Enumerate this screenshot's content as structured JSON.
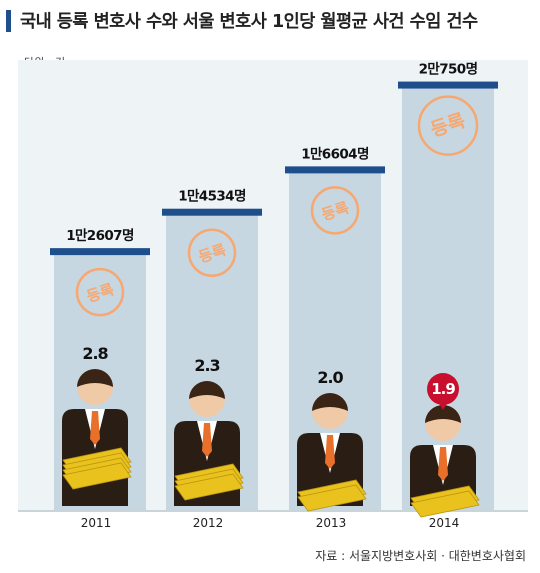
{
  "header": {
    "title": "국내 등록 변호사 수와 서울 변호사 1인당 월평균 사건 수임 건수",
    "unit": "단위 : 건"
  },
  "footer": {
    "source": "자료 : 서울지방변호사회 · 대한변호사협회"
  },
  "chart_data": {
    "type": "bar",
    "categories": [
      "2011",
      "2012",
      "2013",
      "2014"
    ],
    "series": [
      {
        "name": "등록",
        "values": [
          12607,
          14534,
          16604,
          20750
        ],
        "labels": [
          "1만2607명",
          "1만4534명",
          "1만6604명",
          "2만750명"
        ]
      },
      {
        "values": [
          2.8,
          2.3,
          2.0,
          1.9
        ],
        "labels": [
          "2.8",
          "2.3",
          "2.0",
          "1.9"
        ]
      }
    ],
    "ylim": [
      0,
      22000
    ],
    "highlight_category": "2014",
    "colors": {
      "bar": "#c7d7e1",
      "bar_cap": "#1f4e8c",
      "badge": "#f5a872",
      "highlight": "#c8102e",
      "gold": "#e9c21e"
    }
  }
}
